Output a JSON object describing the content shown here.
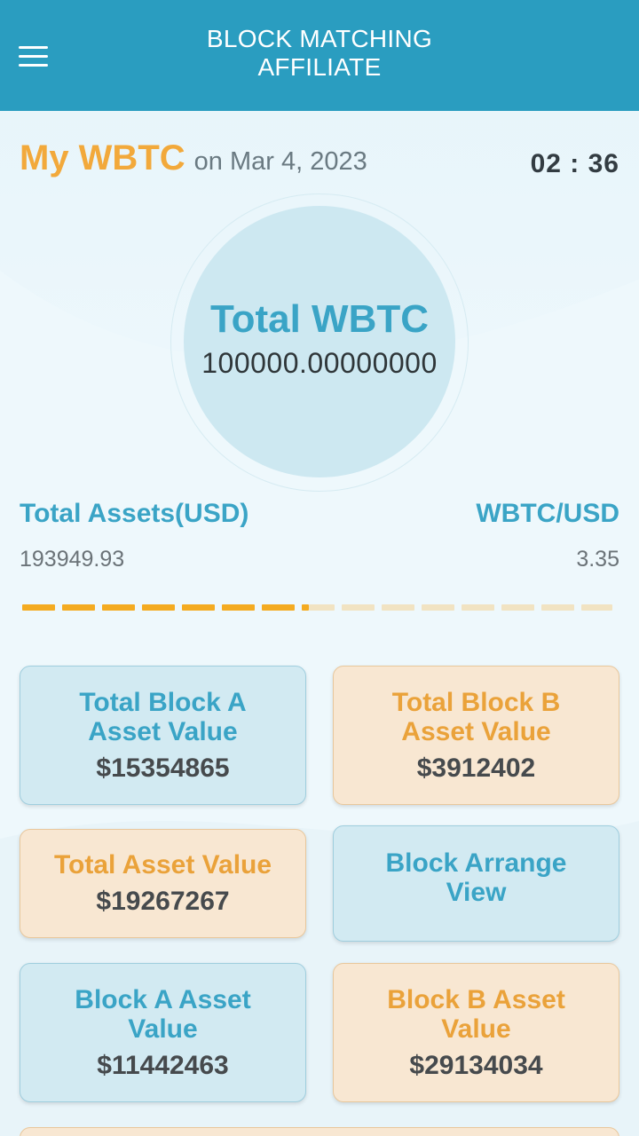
{
  "header": {
    "title_line1": "BLOCK MATCHING",
    "title_line2": "AFFILIATE",
    "menu_icon": "hamburger-menu-icon"
  },
  "wbtc": {
    "title": "My WBTC",
    "date": "on Mar 4, 2023",
    "clock": "02 : 36",
    "total_label": "Total WBTC",
    "total_value": "100000.00000000"
  },
  "assets": {
    "total_assets_label": "Total Assets(USD)",
    "total_assets_value": "193949.93",
    "rate_label": "WBTC/USD",
    "rate_value": "3.35"
  },
  "progress": {
    "fraction": 0.485,
    "active_color": "#f4ab21",
    "inactive_color": "#f1e3c2"
  },
  "cards": [
    {
      "title_line1": "Total Block A",
      "title_line2": "Asset Value",
      "value": "$15354865"
    },
    {
      "title_line1": "Total Block B",
      "title_line2": "Asset Value",
      "value": "$3912402"
    },
    {
      "title_line1": "Total Asset Value",
      "value": "$19267267"
    },
    {
      "title_line1": "Block Arrange",
      "title_line2": "View"
    },
    {
      "title_line1": "Block A Asset",
      "title_line2": "Value",
      "value": "$11442463"
    },
    {
      "title_line1": "Block B Asset",
      "title_line2": "Value",
      "value": "$29134034"
    }
  ],
  "colors": {
    "header": "#2a9dc0",
    "accent_blue": "#3aa4c6",
    "accent_orange": "#f2a93b"
  }
}
